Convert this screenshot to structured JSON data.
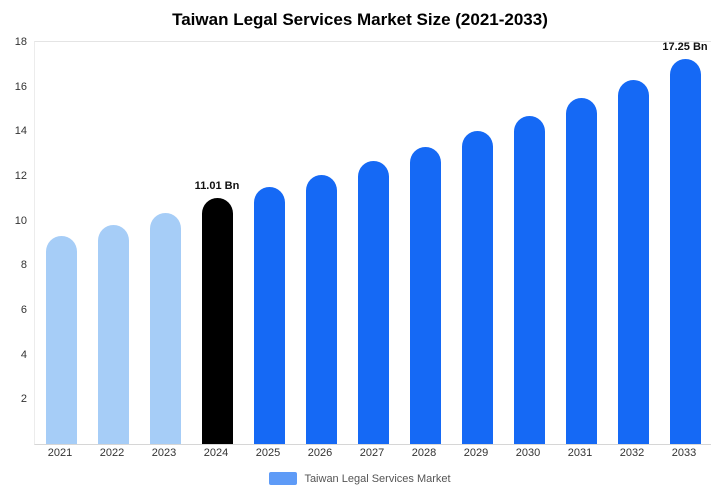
{
  "title": "Taiwan Legal Services Market Size (2021-2033)",
  "legend": {
    "label": "Taiwan Legal Services Market",
    "swatch_color": "#5e9bf7"
  },
  "colors": {
    "historical_bar": "#a6cdf7",
    "highlight_bar": "#000000",
    "forecast_bar": "#1569f5"
  },
  "chart_data": {
    "type": "bar",
    "title": "Taiwan Legal Services Market Size (2021-2033)",
    "categories": [
      "2021",
      "2022",
      "2023",
      "2024",
      "2025",
      "2026",
      "2027",
      "2028",
      "2029",
      "2030",
      "2031",
      "2032",
      "2033"
    ],
    "values": [
      9.3,
      9.8,
      10.35,
      11.01,
      11.5,
      12.05,
      12.65,
      13.3,
      14.0,
      14.7,
      15.5,
      16.3,
      17.25
    ],
    "bar_colors": [
      "#a6cdf7",
      "#a6cdf7",
      "#a6cdf7",
      "#000000",
      "#1569f5",
      "#1569f5",
      "#1569f5",
      "#1569f5",
      "#1569f5",
      "#1569f5",
      "#1569f5",
      "#1569f5",
      "#1569f5"
    ],
    "annotations": [
      {
        "category": "2024",
        "text": "11.01 Bn"
      },
      {
        "category": "2033",
        "text": "17.25 Bn"
      }
    ],
    "xlabel": "",
    "ylabel": "",
    "ylim": [
      0,
      18
    ],
    "yticks": [
      2,
      4,
      6,
      8,
      10,
      12,
      14,
      16,
      18
    ],
    "grid": false,
    "legend_entries": [
      "Taiwan Legal Services Market"
    ],
    "legend_position": "bottom"
  }
}
